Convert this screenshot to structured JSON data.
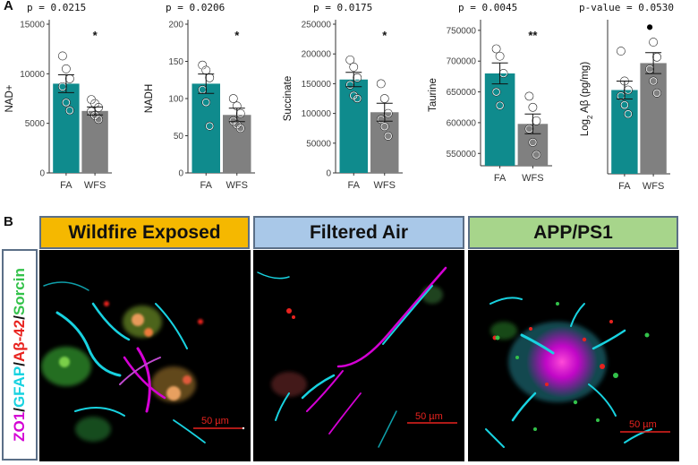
{
  "panels": {
    "a_label": "A",
    "b_label": "B"
  },
  "colors": {
    "fa_bar": "#0f8b8d",
    "wfs_bar": "#808080",
    "wildfire_header": "#f5b800",
    "filtered_header": "#a9c8e8",
    "app_header": "#a7d58b",
    "zo1": "#d400d4",
    "gfap": "#18d2e0",
    "abeta": "#e8231f",
    "sorcin": "#33c24a"
  },
  "chart_data": [
    {
      "type": "bar",
      "pvalue_label": "p = 0.0215",
      "ylabel": "NAD+",
      "categories": [
        "FA",
        "WFS"
      ],
      "values": [
        9000,
        6250
      ],
      "error": [
        900,
        400
      ],
      "ylim": [
        0,
        15000
      ],
      "yticks": [
        "0",
        "5000",
        "10000",
        "15000"
      ],
      "ytick_values": [
        0,
        5000,
        10000,
        15000
      ],
      "significance": "*",
      "points": [
        [
          11800,
          10500,
          9500,
          8700,
          7100,
          6300
        ],
        [
          7400,
          7000,
          6600,
          6200,
          5800,
          5400
        ]
      ],
      "grid": false
    },
    {
      "type": "bar",
      "pvalue_label": "p = 0.0206",
      "ylabel": "NADH",
      "categories": [
        "FA",
        "WFS"
      ],
      "values": [
        120,
        78
      ],
      "error": [
        13,
        9
      ],
      "ylim": [
        0,
        200
      ],
      "yticks": [
        "0",
        "50",
        "100",
        "150",
        "200"
      ],
      "ytick_values": [
        0,
        50,
        100,
        150,
        200
      ],
      "significance": "*",
      "points": [
        [
          145,
          138,
          128,
          112,
          95,
          63
        ],
        [
          100,
          90,
          80,
          70,
          65,
          60
        ]
      ],
      "grid": false
    },
    {
      "type": "bar",
      "pvalue_label": "p = 0.0175",
      "ylabel": "Succinate",
      "categories": [
        "FA",
        "WFS"
      ],
      "values": [
        157000,
        102000
      ],
      "error": [
        12000,
        15000
      ],
      "ylim": [
        0,
        250000
      ],
      "yticks": [
        "0",
        "50000",
        "100000",
        "150000",
        "200000",
        "250000"
      ],
      "ytick_values": [
        0,
        50000,
        100000,
        150000,
        200000,
        250000
      ],
      "significance": "*",
      "points": [
        [
          190000,
          178000,
          160000,
          148000,
          130000,
          125000
        ],
        [
          150000,
          125000,
          100000,
          90000,
          78000,
          62000
        ]
      ],
      "grid": false
    },
    {
      "type": "bar",
      "pvalue_label": "p = 0.0045",
      "ylabel": "Taurine",
      "categories": [
        "FA",
        "WFS"
      ],
      "values": [
        680000,
        598000
      ],
      "error": [
        17000,
        16000
      ],
      "ylim": [
        530000,
        760000
      ],
      "yticks": [
        "550000",
        "600000",
        "650000",
        "700000",
        "750000"
      ],
      "ytick_values": [
        550000,
        600000,
        650000,
        700000,
        750000
      ],
      "significance": "**",
      "points": [
        [
          720000,
          708000,
          680000,
          650000,
          628000
        ],
        [
          643000,
          625000,
          603000,
          590000,
          568000,
          548000
        ]
      ],
      "grid": false
    },
    {
      "type": "bar",
      "pvalue_label": "p-value = 0.0530",
      "ylabel": "Log2 Aβ (pg/mg)",
      "categories": [
        "FA",
        "WFS"
      ],
      "values": [
        2.8,
        3.7
      ],
      "error": [
        0.3,
        0.35
      ],
      "ylim": [
        0,
        5
      ],
      "yticks": [],
      "ytick_values": [],
      "significance": "",
      "points": [
        [
          4.1,
          3.1,
          2.8,
          2.6,
          2.3,
          2.0
        ],
        [
          4.9,
          4.4,
          3.9,
          3.5,
          3.1,
          2.7
        ]
      ],
      "filled_point": [
        1,
        0
      ],
      "grid": false
    }
  ],
  "images": {
    "wildfire_title": "Wildfire Exposed",
    "filtered_title": "Filtered Air",
    "app_title": "APP/PS1",
    "scale_bar_label": "50 µm"
  },
  "stain_label": {
    "zo1": "ZO1",
    "slash1": "/",
    "gfap": "GFAP",
    "slash2": "/",
    "abeta": "Aβ-42",
    "slash3": "/",
    "sorcin": "Sorcin"
  }
}
